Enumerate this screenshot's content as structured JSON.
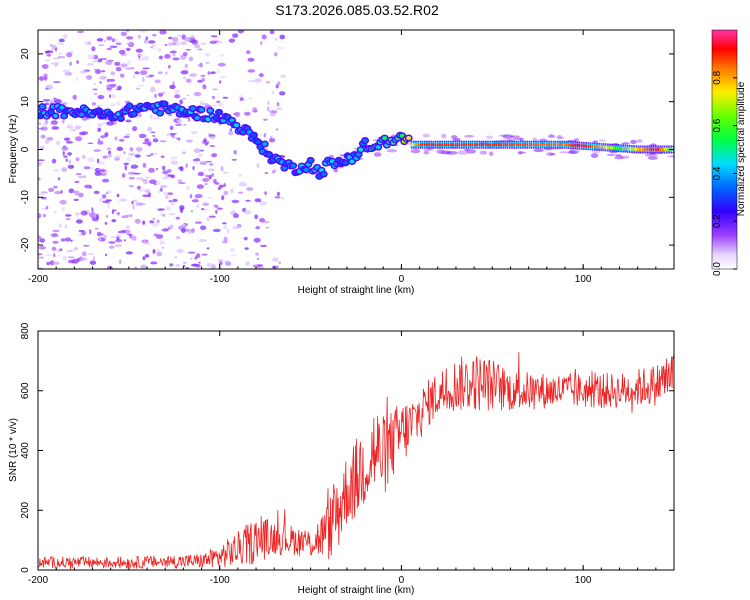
{
  "title": "S173.2026.085.03.52.R02",
  "colors": {
    "background": "#ffffff",
    "snr_line": "#ee2222",
    "axis": "#000000",
    "spectrogram_ridge": "#ff1010",
    "spectrogram_scatter": "#8a2be2"
  },
  "chart_data": [
    {
      "type": "heatmap",
      "name": "spectrogram",
      "title": "S173.2026.085.03.52.R02",
      "xlabel": "Height of straight line (km)",
      "ylabel": "Frequency (Hz)",
      "xlim": [
        -200,
        150
      ],
      "ylim": [
        -25,
        25
      ],
      "xticks": [
        -200,
        -100,
        0,
        100
      ],
      "yticks": [
        -20,
        -10,
        0,
        10,
        20
      ],
      "colorbar": {
        "label": "Normalized spectral amplitude",
        "range": [
          0,
          1
        ],
        "ticks": [
          "0.0",
          "0.2",
          "0.4",
          "0.6",
          "0.8"
        ],
        "colormap": "rainbow (white-violet-blue-cyan-green-yellow-red-magenta)"
      },
      "ridge_frequency": {
        "description": "dominant frequency line (Hz) vs height (km)",
        "x": [
          -200,
          -180,
          -160,
          -140,
          -120,
          -100,
          -90,
          -80,
          -70,
          -60,
          -50,
          -45,
          -40,
          -35,
          -30,
          -25,
          -20,
          -15,
          -10,
          -5,
          0,
          5,
          10,
          30,
          50,
          70,
          90,
          110,
          130,
          150
        ],
        "y": [
          8,
          8,
          7,
          9,
          8,
          7,
          5,
          2,
          -2,
          -4,
          -3,
          -5,
          -3,
          -3,
          -2,
          -1,
          1,
          0,
          2,
          1,
          3,
          1,
          1,
          1,
          1,
          1,
          1,
          0.5,
          0,
          0
        ]
      },
      "ridge_amplitude": {
        "description": "normalized amplitude along ridge",
        "x": [
          -200,
          -150,
          -100,
          -60,
          -30,
          -10,
          0,
          10,
          50,
          90,
          100,
          120,
          140,
          150
        ],
        "values": [
          0.3,
          0.3,
          0.3,
          0.3,
          0.3,
          0.4,
          0.5,
          0.9,
          0.9,
          0.85,
          0.95,
          0.6,
          0.95,
          0.5
        ]
      }
    },
    {
      "type": "line",
      "name": "snr",
      "xlabel": "Height of straight line (km)",
      "ylabel": "SNR (10 * v/v)",
      "xlim": [
        -200,
        150
      ],
      "ylim": [
        0,
        800
      ],
      "xticks": [
        -200,
        -100,
        0,
        100
      ],
      "yticks": [
        0,
        200,
        400,
        600,
        800
      ],
      "envelope": {
        "description": "mean SNR and fluctuation amplitude vs height (km)",
        "x": [
          -200,
          -150,
          -110,
          -100,
          -90,
          -80,
          -70,
          -60,
          -50,
          -40,
          -35,
          -30,
          -25,
          -20,
          -15,
          -10,
          -5,
          0,
          5,
          10,
          15,
          20,
          30,
          40,
          50,
          60,
          80,
          100,
          120,
          140,
          150
        ],
        "mean": [
          25,
          25,
          30,
          45,
          70,
          100,
          110,
          100,
          90,
          130,
          200,
          270,
          300,
          360,
          400,
          380,
          420,
          460,
          480,
          520,
          560,
          590,
          620,
          630,
          620,
          600,
          600,
          600,
          600,
          620,
          660
        ],
        "amplitude": [
          20,
          20,
          25,
          40,
          60,
          80,
          60,
          50,
          50,
          100,
          150,
          120,
          140,
          150,
          170,
          140,
          120,
          110,
          100,
          90,
          80,
          80,
          90,
          100,
          90,
          70,
          60,
          60,
          60,
          70,
          90
        ]
      }
    }
  ]
}
